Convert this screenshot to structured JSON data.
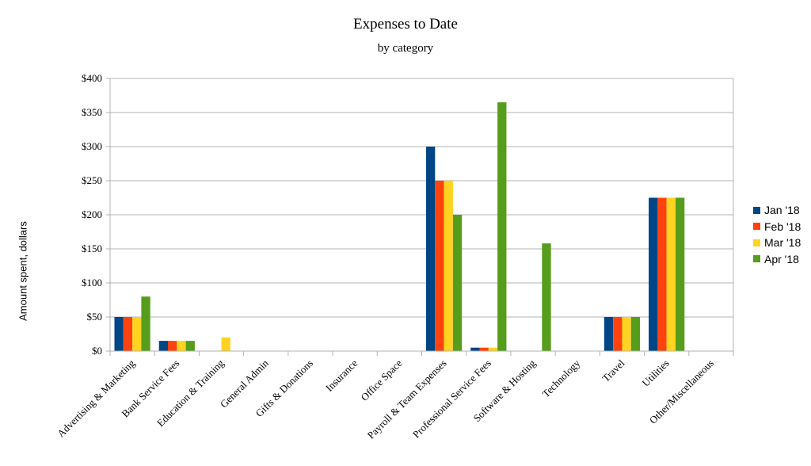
{
  "chart_data": {
    "type": "bar",
    "title": "Expenses to Date",
    "subtitle": "by category",
    "xlabel": "",
    "ylabel": "Amount spent, dollars",
    "ylim": [
      0,
      400
    ],
    "y_ticks": [
      "$0",
      "$50",
      "$100",
      "$150",
      "$200",
      "$250",
      "$300",
      "$350",
      "$400"
    ],
    "grid": true,
    "legend_position": "right",
    "categories": [
      "Advertising & Marketing",
      "Bank Service Fees",
      "Education & Training",
      "General Admin",
      "Gifts & Donations",
      "Insurance",
      "Office Space",
      "Payroll & Team Expenses",
      "Professional Service Fees",
      "Software & Hosting",
      "Technology",
      "Travel",
      "Utilities",
      "Other/Miscellaneous"
    ],
    "series": [
      {
        "name": "Jan '18",
        "color": "#004586",
        "values": [
          50,
          15,
          0,
          0,
          0,
          0,
          0,
          300,
          5,
          0,
          0,
          50,
          225,
          0
        ]
      },
      {
        "name": "Feb '18",
        "color": "#ff420e",
        "values": [
          50,
          15,
          0,
          0,
          0,
          0,
          0,
          250,
          5,
          0,
          0,
          50,
          225,
          0
        ]
      },
      {
        "name": "Mar '18",
        "color": "#ffd320",
        "values": [
          50,
          15,
          20,
          0,
          0,
          0,
          0,
          250,
          5,
          0,
          0,
          50,
          225,
          0
        ]
      },
      {
        "name": "Apr '18",
        "color": "#579d1c",
        "values": [
          80,
          15,
          0,
          0,
          0,
          0,
          0,
          200,
          365,
          158,
          0,
          50,
          225,
          0
        ]
      }
    ]
  }
}
